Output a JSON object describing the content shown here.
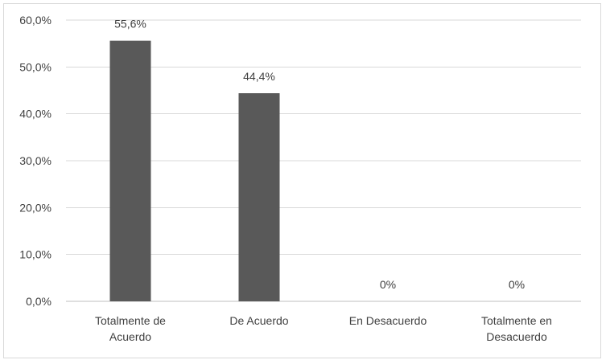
{
  "chart_data": {
    "type": "bar",
    "categories": [
      [
        "Totalmente de",
        "Acuerdo"
      ],
      [
        "De Acuerdo"
      ],
      [
        "En Desacuerdo"
      ],
      [
        "Totalmente en",
        "Desacuerdo"
      ]
    ],
    "values": [
      55.6,
      44.4,
      0,
      0
    ],
    "data_labels": [
      "55,6%",
      "44,4%",
      "0%",
      "0%"
    ],
    "y_ticks": [
      "0,0%",
      "10,0%",
      "20,0%",
      "30,0%",
      "40,0%",
      "50,0%",
      "60,0%"
    ],
    "ylim": [
      0,
      60
    ],
    "grid": true,
    "title": "",
    "xlabel": "",
    "ylabel": "",
    "colors": {
      "bar": "#595959",
      "grid": "#d9d9d9",
      "axis": "#bfbfbf",
      "text": "#404040"
    }
  }
}
